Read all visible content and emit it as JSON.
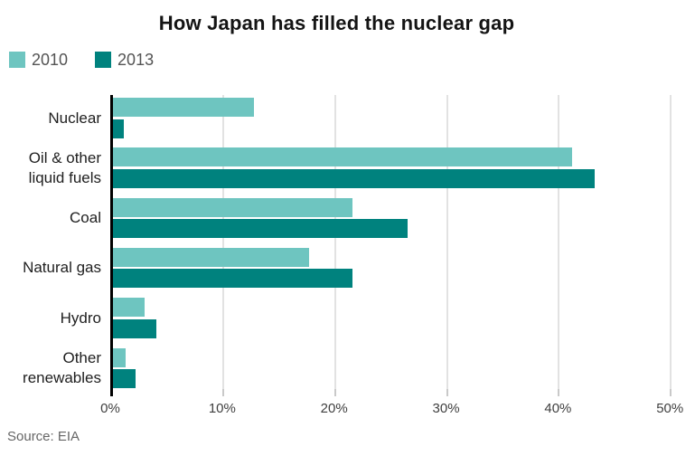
{
  "title": "How Japan has filled the nuclear gap",
  "source": "Source: EIA",
  "legend": [
    {
      "label": "2010",
      "color": "#6ec5c0"
    },
    {
      "label": "2013",
      "color": "#00827e"
    }
  ],
  "colors": {
    "series_2010": "#6ec5c0",
    "series_2013": "#00827e",
    "gridline": "#e2e2e2",
    "tick": "#c9c9c9",
    "axis_line": "#000000",
    "title_text": "#141414",
    "category_text": "#1f1f1f",
    "tick_text": "#404040",
    "legend_text": "#545454",
    "source_text": "#666666"
  },
  "chart_data": {
    "type": "bar",
    "orientation": "horizontal",
    "title": "How Japan has filled the nuclear gap",
    "categories": [
      "Nuclear",
      "Oil & other liquid fuels",
      "Coal",
      "Natural gas",
      "Hydro",
      "Other renewables"
    ],
    "categories_display": [
      "Nuclear",
      "Oil & other\nliquid fuels",
      "Coal",
      "Natural gas",
      "Hydro",
      "Other\nrenewables"
    ],
    "series": [
      {
        "name": "2010",
        "color": "#6ec5c0",
        "values": [
          12.6,
          41,
          21.4,
          17.5,
          2.8,
          1.1
        ]
      },
      {
        "name": "2013",
        "color": "#00827e",
        "values": [
          1,
          43,
          26.3,
          21.4,
          3.9,
          2
        ]
      }
    ],
    "value_unit": "%",
    "xlabel": "",
    "ylabel": "",
    "x_ticks": [
      "0%",
      "10%",
      "20%",
      "30%",
      "40%",
      "50%"
    ],
    "x_tick_values": [
      0,
      10,
      20,
      30,
      40,
      50
    ],
    "xlim": [
      0,
      52
    ],
    "grid": true,
    "legend_position": "top-left",
    "source": "Source: EIA"
  }
}
